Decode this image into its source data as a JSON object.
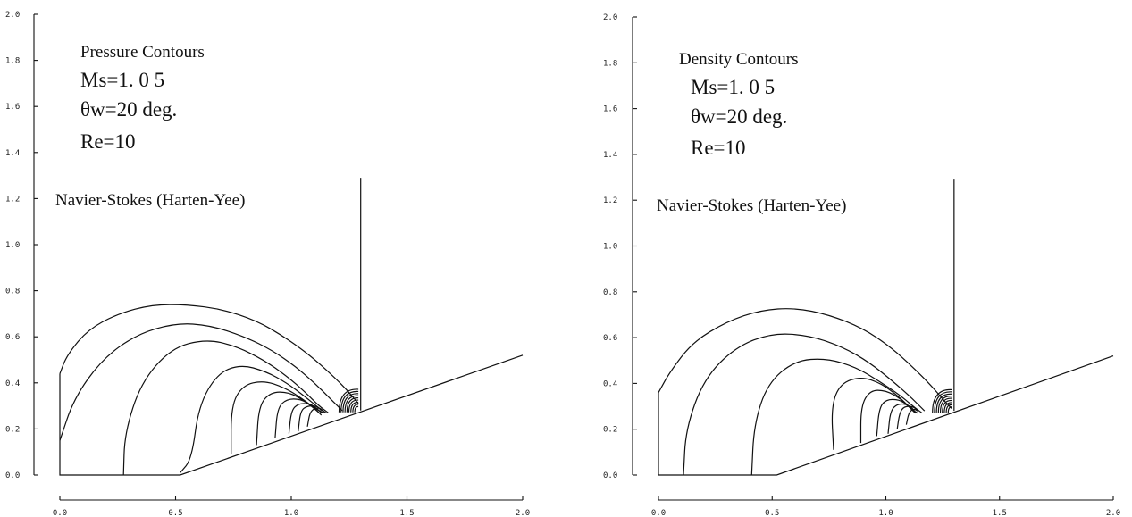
{
  "chart_data": [
    {
      "type": "contour",
      "title": "Pressure Contours",
      "annotations": [
        "Ms=1. 0 5",
        "θw=20 deg.",
        "Re=10",
        "Navier-Stokes (Harten-Yee)"
      ],
      "xlim": [
        0.0,
        2.0
      ],
      "ylim": [
        0.0,
        2.0
      ],
      "x_ticks": [
        "0.0",
        "0.5",
        "1.0",
        "1.5",
        "2.0"
      ],
      "y_ticks": [
        "0.0",
        "0.2",
        "0.4",
        "0.6",
        "0.8",
        "1.0",
        "1.2",
        "1.4",
        "1.6",
        "1.8",
        "2.0"
      ],
      "wedge": {
        "corner_x": 0.52,
        "angle_deg": 20,
        "end": [
          2.0,
          0.52
        ]
      },
      "incident_shock": {
        "x": 1.3,
        "y_range": [
          0.28,
          1.29
        ]
      },
      "contour_lines": [
        {
          "points": [
            [
              0.0,
              0.44
            ],
            [
              0.03,
              0.52
            ],
            [
              0.12,
              0.63
            ],
            [
              0.25,
              0.7
            ],
            [
              0.4,
              0.74
            ],
            [
              0.55,
              0.74
            ],
            [
              0.7,
              0.72
            ],
            [
              0.85,
              0.67
            ],
            [
              0.97,
              0.6
            ],
            [
              1.08,
              0.52
            ],
            [
              1.17,
              0.44
            ],
            [
              1.24,
              0.37
            ],
            [
              1.29,
              0.31
            ]
          ]
        },
        {
          "points": [
            [
              0.0,
              0.15
            ],
            [
              0.06,
              0.33
            ],
            [
              0.18,
              0.5
            ],
            [
              0.33,
              0.61
            ],
            [
              0.5,
              0.66
            ],
            [
              0.65,
              0.65
            ],
            [
              0.8,
              0.6
            ],
            [
              0.92,
              0.54
            ],
            [
              1.02,
              0.47
            ],
            [
              1.1,
              0.4
            ],
            [
              1.17,
              0.33
            ],
            [
              1.22,
              0.28
            ]
          ]
        },
        {
          "points": [
            [
              0.275,
              0.0
            ],
            [
              0.28,
              0.18
            ],
            [
              0.35,
              0.4
            ],
            [
              0.48,
              0.55
            ],
            [
              0.63,
              0.59
            ],
            [
              0.76,
              0.56
            ],
            [
              0.88,
              0.5
            ],
            [
              0.98,
              0.43
            ],
            [
              1.06,
              0.36
            ],
            [
              1.12,
              0.3
            ],
            [
              1.16,
              0.27
            ]
          ]
        },
        {
          "points": [
            [
              0.52,
              0.01
            ],
            [
              0.57,
              0.07
            ],
            [
              0.6,
              0.3
            ],
            [
              0.68,
              0.44
            ],
            [
              0.78,
              0.48
            ],
            [
              0.89,
              0.45
            ],
            [
              0.98,
              0.4
            ],
            [
              1.06,
              0.34
            ],
            [
              1.12,
              0.29
            ],
            [
              1.15,
              0.27
            ]
          ]
        },
        {
          "points": [
            [
              0.74,
              0.09
            ],
            [
              0.74,
              0.3
            ],
            [
              0.79,
              0.39
            ],
            [
              0.88,
              0.41
            ],
            [
              0.97,
              0.38
            ],
            [
              1.05,
              0.33
            ],
            [
              1.1,
              0.29
            ],
            [
              1.14,
              0.27
            ]
          ]
        },
        {
          "points": [
            [
              0.85,
              0.13
            ],
            [
              0.86,
              0.3
            ],
            [
              0.91,
              0.36
            ],
            [
              0.99,
              0.36
            ],
            [
              1.06,
              0.32
            ],
            [
              1.11,
              0.28
            ],
            [
              1.13,
              0.26
            ]
          ]
        },
        {
          "points": [
            [
              0.93,
              0.16
            ],
            [
              0.94,
              0.29
            ],
            [
              0.98,
              0.33
            ],
            [
              1.04,
              0.33
            ],
            [
              1.09,
              0.3
            ],
            [
              1.12,
              0.27
            ]
          ]
        },
        {
          "points": [
            [
              0.99,
              0.18
            ],
            [
              1.0,
              0.28
            ],
            [
              1.03,
              0.31
            ],
            [
              1.08,
              0.31
            ],
            [
              1.11,
              0.29
            ],
            [
              1.13,
              0.27
            ]
          ]
        },
        {
          "points": [
            [
              1.03,
              0.19
            ],
            [
              1.04,
              0.28
            ],
            [
              1.07,
              0.3
            ],
            [
              1.11,
              0.3
            ],
            [
              1.13,
              0.28
            ]
          ]
        },
        {
          "points": [
            [
              1.07,
              0.21
            ],
            [
              1.08,
              0.27
            ],
            [
              1.1,
              0.29
            ],
            [
              1.13,
              0.29
            ],
            [
              1.14,
              0.27
            ]
          ]
        }
      ]
    },
    {
      "type": "contour",
      "title": "Density Contours",
      "annotations": [
        "Ms=1. 0 5",
        "θw=20 deg.",
        "Re=10",
        "Navier-Stokes (Harten-Yee)"
      ],
      "xlim": [
        0.0,
        2.0
      ],
      "ylim": [
        0.0,
        2.0
      ],
      "x_ticks": [
        "0.0",
        "0.5",
        "1.0",
        "1.5",
        "2.0"
      ],
      "y_ticks": [
        "0.0",
        "0.2",
        "0.4",
        "0.6",
        "0.8",
        "1.0",
        "1.2",
        "1.4",
        "1.6",
        "1.8",
        "2.0"
      ],
      "wedge": {
        "corner_x": 0.52,
        "angle_deg": 20,
        "end": [
          2.0,
          0.52
        ]
      },
      "incident_shock": {
        "x": 1.3,
        "y_range": [
          0.28,
          1.29
        ]
      },
      "contour_lines": [
        {
          "points": [
            [
              0.0,
              0.36
            ],
            [
              0.05,
              0.45
            ],
            [
              0.15,
              0.58
            ],
            [
              0.3,
              0.67
            ],
            [
              0.45,
              0.72
            ],
            [
              0.6,
              0.73
            ],
            [
              0.75,
              0.7
            ],
            [
              0.9,
              0.64
            ],
            [
              1.02,
              0.56
            ],
            [
              1.12,
              0.47
            ],
            [
              1.2,
              0.39
            ],
            [
              1.26,
              0.32
            ],
            [
              1.29,
              0.29
            ]
          ]
        },
        {
          "points": [
            [
              0.11,
              0.0
            ],
            [
              0.12,
              0.2
            ],
            [
              0.2,
              0.42
            ],
            [
              0.34,
              0.56
            ],
            [
              0.5,
              0.62
            ],
            [
              0.66,
              0.61
            ],
            [
              0.81,
              0.56
            ],
            [
              0.93,
              0.49
            ],
            [
              1.03,
              0.41
            ],
            [
              1.11,
              0.34
            ],
            [
              1.17,
              0.28
            ]
          ]
        },
        {
          "points": [
            [
              0.41,
              0.0
            ],
            [
              0.42,
              0.22
            ],
            [
              0.48,
              0.4
            ],
            [
              0.6,
              0.5
            ],
            [
              0.74,
              0.51
            ],
            [
              0.87,
              0.47
            ],
            [
              0.97,
              0.41
            ],
            [
              1.06,
              0.35
            ],
            [
              1.12,
              0.3
            ],
            [
              1.16,
              0.27
            ]
          ]
        },
        {
          "points": [
            [
              0.77,
              0.11
            ],
            [
              0.76,
              0.3
            ],
            [
              0.8,
              0.4
            ],
            [
              0.89,
              0.43
            ],
            [
              0.98,
              0.4
            ],
            [
              1.06,
              0.34
            ],
            [
              1.11,
              0.29
            ],
            [
              1.14,
              0.27
            ]
          ]
        },
        {
          "points": [
            [
              0.89,
              0.14
            ],
            [
              0.89,
              0.3
            ],
            [
              0.93,
              0.37
            ],
            [
              1.0,
              0.37
            ],
            [
              1.07,
              0.33
            ],
            [
              1.11,
              0.29
            ],
            [
              1.13,
              0.27
            ]
          ]
        },
        {
          "points": [
            [
              0.96,
              0.17
            ],
            [
              0.97,
              0.29
            ],
            [
              1.0,
              0.33
            ],
            [
              1.06,
              0.33
            ],
            [
              1.1,
              0.3
            ],
            [
              1.13,
              0.27
            ]
          ]
        },
        {
          "points": [
            [
              1.01,
              0.18
            ],
            [
              1.02,
              0.28
            ],
            [
              1.05,
              0.31
            ],
            [
              1.09,
              0.31
            ],
            [
              1.12,
              0.29
            ],
            [
              1.13,
              0.27
            ]
          ]
        },
        {
          "points": [
            [
              1.05,
              0.2
            ],
            [
              1.06,
              0.27
            ],
            [
              1.08,
              0.3
            ],
            [
              1.12,
              0.3
            ],
            [
              1.14,
              0.28
            ]
          ]
        },
        {
          "points": [
            [
              1.09,
              0.22
            ],
            [
              1.1,
              0.27
            ],
            [
              1.12,
              0.29
            ],
            [
              1.14,
              0.28
            ]
          ]
        }
      ]
    }
  ]
}
